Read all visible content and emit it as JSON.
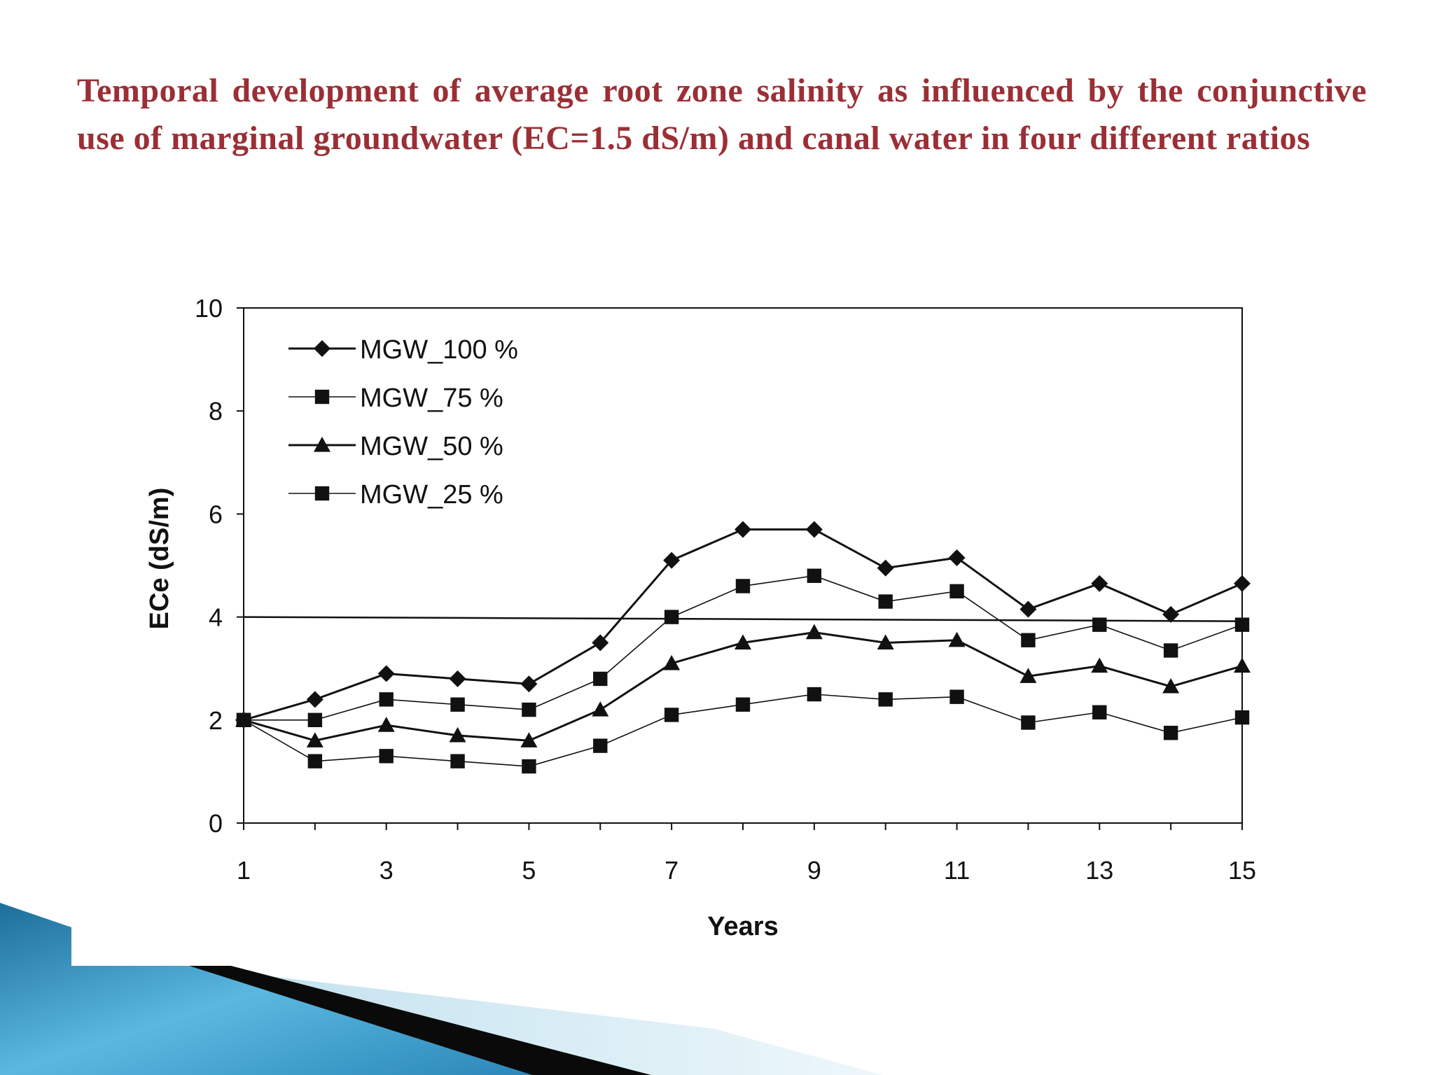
{
  "slide": {
    "title": "Temporal development of average root zone salinity as influenced by the conjunctive use of marginal groundwater (EC=1.5 dS/m) and canal water in four different ratios"
  },
  "chart_data": {
    "type": "line",
    "title": "",
    "xlabel": "Years",
    "ylabel": "ECe (dS/m)",
    "x": [
      1,
      2,
      3,
      4,
      5,
      6,
      7,
      8,
      9,
      10,
      11,
      12,
      13,
      14,
      15
    ],
    "xlim": [
      1,
      15
    ],
    "ylim": [
      0,
      10
    ],
    "x_ticks": [
      "1",
      "3",
      "5",
      "7",
      "9",
      "11",
      "13",
      "15"
    ],
    "y_ticks": [
      "0",
      "2",
      "4",
      "6",
      "8",
      "10"
    ],
    "grid": false,
    "legend_position": "top-left",
    "threshold_line": 4,
    "series": [
      {
        "name": "MGW_100 %",
        "marker": "diamond",
        "values": [
          2.0,
          2.4,
          2.9,
          2.8,
          2.7,
          3.5,
          5.1,
          5.7,
          5.7,
          4.95,
          5.15,
          4.15,
          4.65,
          4.05,
          4.65
        ]
      },
      {
        "name": "MGW_75 %",
        "marker": "square",
        "values": [
          2.0,
          2.0,
          2.4,
          2.3,
          2.2,
          2.8,
          4.0,
          4.6,
          4.8,
          4.3,
          4.5,
          3.55,
          3.85,
          3.35,
          3.85
        ]
      },
      {
        "name": "MGW_50 %",
        "marker": "triangle",
        "values": [
          2.0,
          1.6,
          1.9,
          1.7,
          1.6,
          2.2,
          3.1,
          3.5,
          3.7,
          3.5,
          3.55,
          2.85,
          3.05,
          2.65,
          3.05
        ]
      },
      {
        "name": "MGW_25 %",
        "marker": "square",
        "values": [
          2.0,
          1.2,
          1.3,
          1.2,
          1.1,
          1.5,
          2.1,
          2.3,
          2.5,
          2.4,
          2.45,
          1.95,
          2.15,
          1.75,
          2.05
        ]
      }
    ]
  }
}
